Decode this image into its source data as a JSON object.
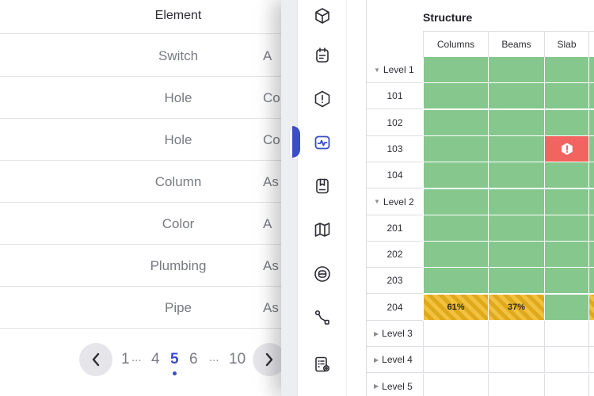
{
  "list": {
    "headers": {
      "element": "Element",
      "type": ""
    },
    "rows": [
      {
        "element": "Switch",
        "type": "A"
      },
      {
        "element": "Hole",
        "type": "Co"
      },
      {
        "element": "Hole",
        "type": "Co"
      },
      {
        "element": "Column",
        "type": "As"
      },
      {
        "element": "Color",
        "type": "A"
      },
      {
        "element": "Plumbing",
        "type": "As"
      },
      {
        "element": "Pipe",
        "type": "As"
      }
    ]
  },
  "pagination": {
    "pages": [
      "1",
      "...",
      "4",
      "5",
      "6",
      "...",
      "10"
    ],
    "current": "5",
    "prev_icon": "chevron-left-icon",
    "next_icon": "chevron-right-icon"
  },
  "rail": {
    "items": [
      {
        "name": "cube-icon"
      },
      {
        "name": "calendar-note-icon"
      },
      {
        "name": "alert-hexagon-icon"
      },
      {
        "name": "activity-monitor-icon",
        "active": true
      },
      {
        "name": "bookmark-icon"
      },
      {
        "name": "map-icon"
      },
      {
        "name": "disc-icon"
      },
      {
        "name": "route-icon"
      },
      {
        "name": "report-settings-icon"
      }
    ],
    "accent": "#3b4ec4"
  },
  "grid": {
    "group": "Structure",
    "columns": [
      "Columns",
      "Beams",
      "Slab"
    ],
    "rows": [
      {
        "label": "Level 1",
        "level": true,
        "expanded": true,
        "cells": [
          "done",
          "done",
          "done",
          "done"
        ]
      },
      {
        "label": "101",
        "cells": [
          "done",
          "done",
          "done",
          "done"
        ]
      },
      {
        "label": "102",
        "cells": [
          "done",
          "done",
          "done",
          "done"
        ]
      },
      {
        "label": "103",
        "cells": [
          "done",
          "done",
          "error",
          "done"
        ]
      },
      {
        "label": "104",
        "cells": [
          "done",
          "done",
          "done",
          "done"
        ]
      },
      {
        "label": "Level 2",
        "level": true,
        "expanded": true,
        "cells": [
          "done",
          "done",
          "done",
          "done"
        ]
      },
      {
        "label": "201",
        "cells": [
          "done",
          "done",
          "done",
          "done"
        ]
      },
      {
        "label": "202",
        "cells": [
          "done",
          "done",
          "done",
          "done"
        ]
      },
      {
        "label": "203",
        "cells": [
          "done",
          "done",
          "done",
          "done"
        ]
      },
      {
        "label": "204",
        "cells": [
          "partial",
          "partial",
          "done",
          "partial"
        ],
        "percents": [
          "61%",
          "37%",
          "",
          ""
        ]
      },
      {
        "label": "Level 3",
        "level": true,
        "expanded": false,
        "cells": [
          "empty",
          "empty",
          "empty",
          "empty"
        ]
      },
      {
        "label": "Level 4",
        "level": true,
        "expanded": false,
        "cells": [
          "empty",
          "empty",
          "empty",
          "empty"
        ]
      },
      {
        "label": "Level 5",
        "level": true,
        "expanded": false,
        "cells": [
          "empty",
          "empty",
          "empty",
          "empty"
        ]
      }
    ],
    "colors": {
      "done": "#86c78e",
      "error": "#f2645f",
      "partial": "#f2c23e"
    }
  }
}
